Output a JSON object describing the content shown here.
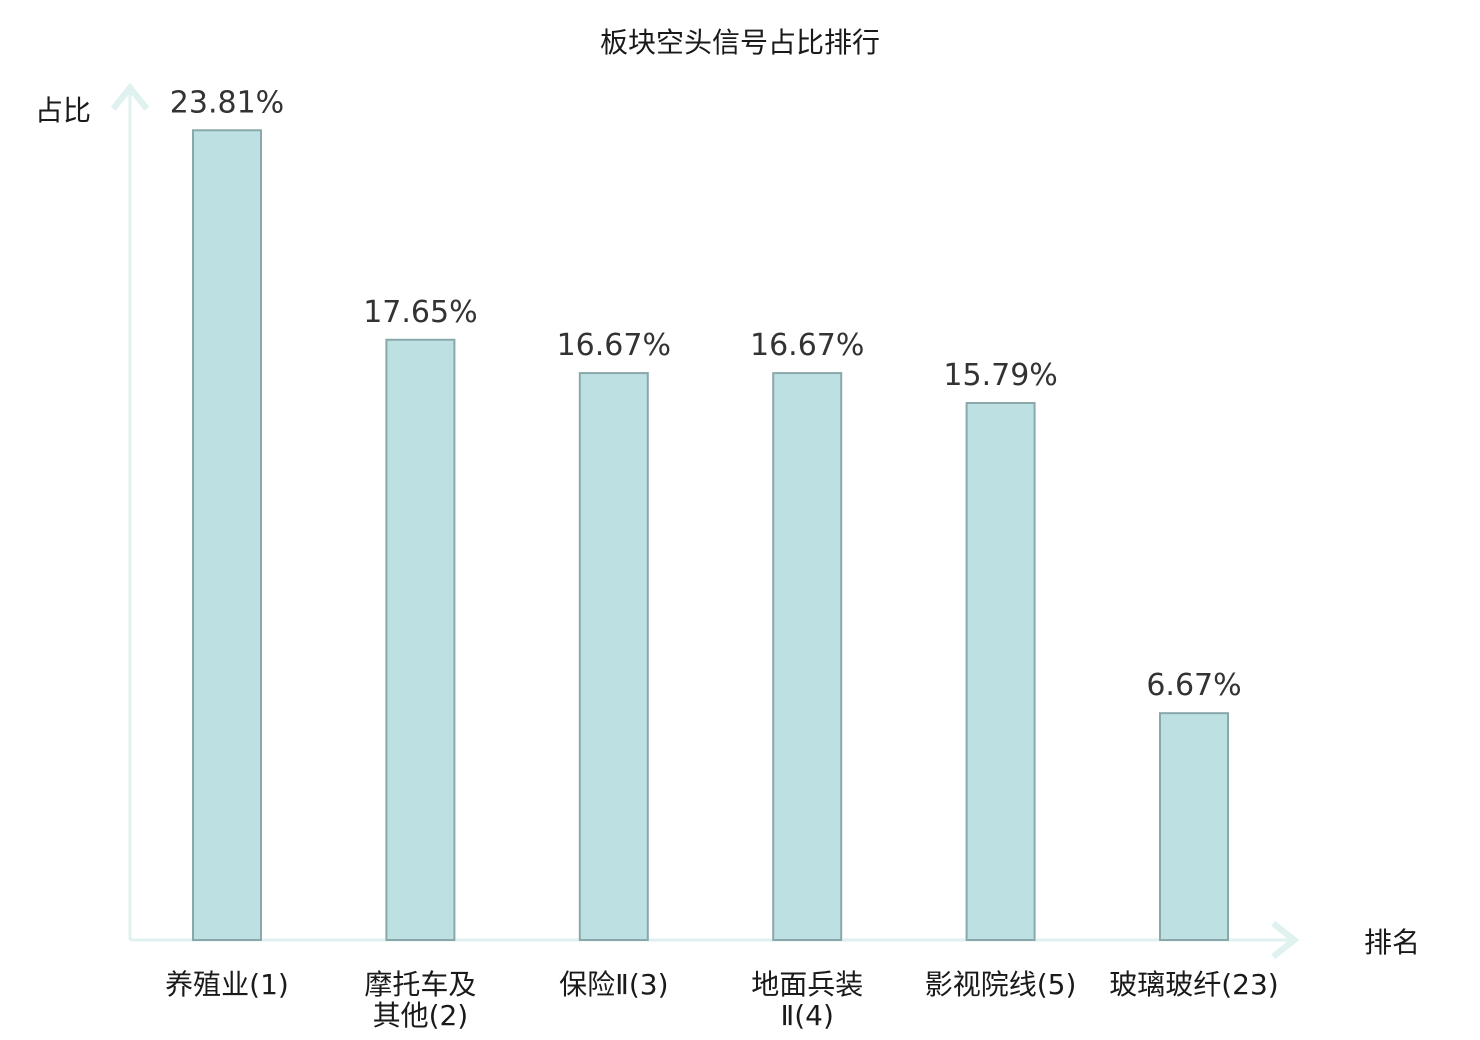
{
  "chart_data": {
    "type": "bar",
    "title": "板块空头信号占比排行",
    "xlabel": "排名",
    "ylabel": "占比",
    "categories": [
      [
        "养殖业(1)"
      ],
      [
        "摩托车及",
        "其他(2)"
      ],
      [
        "保险Ⅱ(3)"
      ],
      [
        "地面兵装",
        "Ⅱ(4)"
      ],
      [
        "影视院线(5)"
      ],
      [
        "玻璃玻纤(23)"
      ]
    ],
    "values": [
      23.81,
      17.65,
      16.67,
      16.67,
      15.79,
      6.67
    ],
    "value_labels": [
      "23.81%",
      "17.65%",
      "16.67%",
      "16.67%",
      "15.79%",
      "6.67%"
    ],
    "highlight_index": 5,
    "ylim": [
      0,
      24.7
    ],
    "grid": false,
    "legend": "none",
    "colors": {
      "bar_fill": "#bde0e3",
      "bar_stroke": "#8aa8aa",
      "axis": "#dff2ef",
      "highlight_text": "#e41a1c",
      "text": "#1a1a1a"
    }
  }
}
